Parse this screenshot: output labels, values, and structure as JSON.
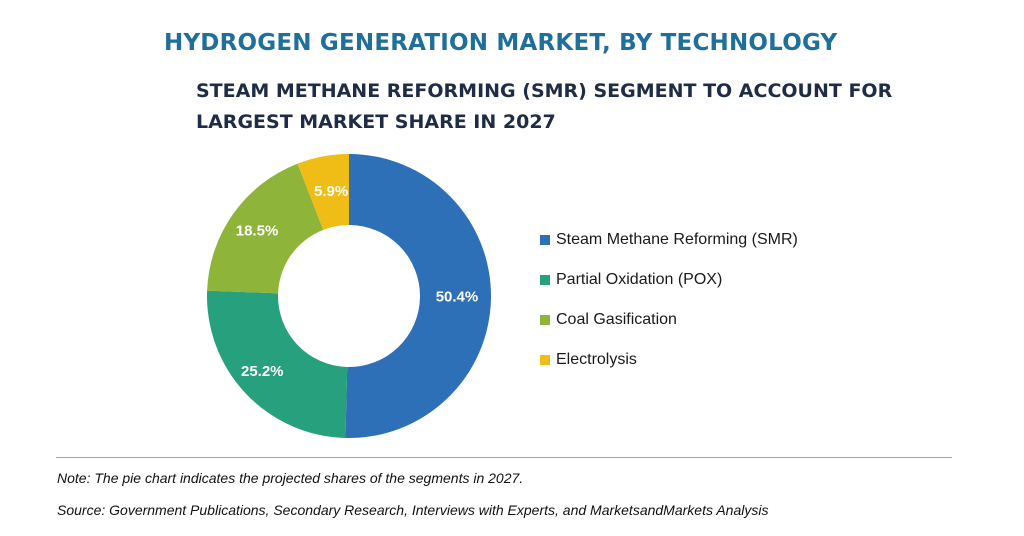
{
  "header": {
    "title": "HYDROGEN GENERATION MARKET, BY TECHNOLOGY",
    "subtitle": "STEAM METHANE REFORMING (SMR) SEGMENT TO ACCOUNT FOR LARGEST MARKET SHARE IN 2027"
  },
  "chart_data": {
    "type": "pie",
    "donut": true,
    "categories": [
      "Steam Methane Reforming (SMR)",
      "Partial Oxidation (POX)",
      "Coal Gasification",
      "Electrolysis"
    ],
    "values": [
      50.4,
      25.2,
      18.5,
      5.9
    ],
    "data_labels": [
      "50.4%",
      "25.2%",
      "18.5%",
      "5.9%"
    ],
    "colors": [
      "#2e70b8",
      "#27a07d",
      "#8fb43a",
      "#f0bc16"
    ],
    "legend_position": "right",
    "unit": "%"
  },
  "footer": {
    "note": "Note: The pie chart indicates the projected shares of the segments in 2027.",
    "source": "Source: Government Publications, Secondary Research, Interviews with Experts, and MarketsandMarkets Analysis"
  }
}
